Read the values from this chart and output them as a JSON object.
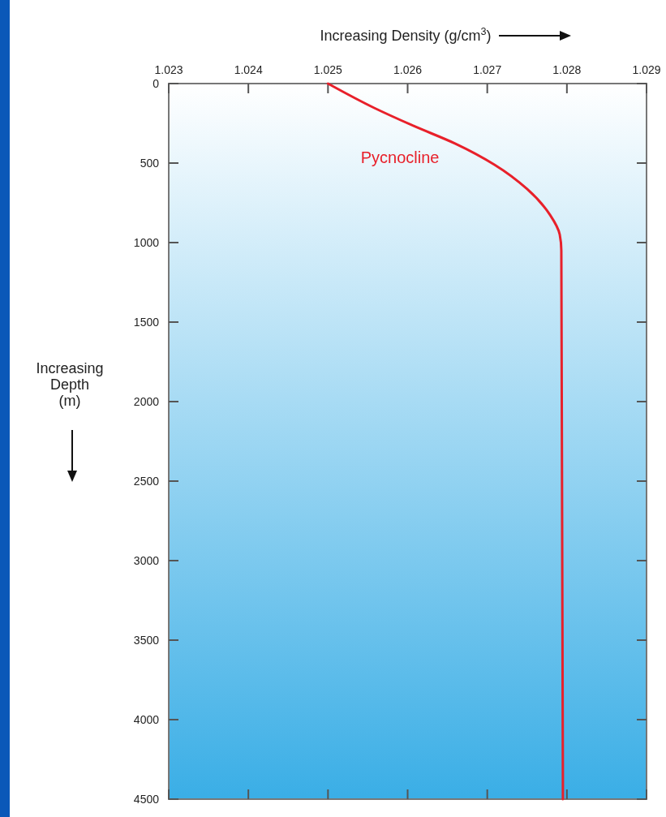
{
  "chart_data": {
    "type": "line",
    "xlabel": "Increasing Density (g/cm$^{3}$)",
    "ylabel": "Increasing Depth (m)",
    "xlim": [
      1.023,
      1.029
    ],
    "xticks": [
      1.023,
      1.024,
      1.025,
      1.026,
      1.027,
      1.028,
      1.029
    ],
    "ylim": [
      4500,
      0
    ],
    "yticks": [
      0,
      500,
      1000,
      1500,
      2000,
      2500,
      3000,
      3500,
      4000,
      4500
    ],
    "grid": false,
    "marker": "none",
    "line_style": "solid",
    "series": [
      {
        "name": "Pycnocline",
        "color": "#e8202a",
        "x": [
          1.025,
          1.02558,
          1.02607,
          1.0266,
          1.02709,
          1.0275,
          1.02779,
          1.02791,
          1.02793,
          1.02795
        ],
        "values": [
          0,
          153,
          265,
          378,
          510,
          663,
          827,
          949,
          1050,
          4500
        ]
      }
    ]
  }
}
